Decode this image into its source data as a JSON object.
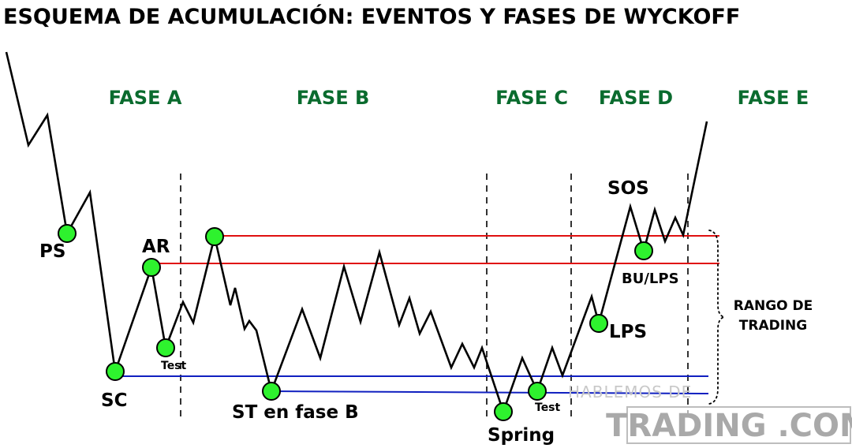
{
  "title": "ESQUEMA DE ACUMULACIÓN: EVENTOS Y FASES DE  WYCKOFF",
  "phases": [
    "FASE A",
    "FASE B",
    "FASE C",
    "FASE D",
    "FASE E"
  ],
  "events": {
    "ps": "PS",
    "sc": "SC",
    "ar": "AR",
    "test_a": "Test",
    "st_b": "ST en fase B",
    "spring": "Spring",
    "test_c": "Test",
    "sos": "SOS",
    "bu_lps": "BU/LPS",
    "lps": "LPS"
  },
  "range_label": [
    "RANGO DE",
    "TRADING"
  ],
  "watermark": {
    "line1": "HABLEMOS DE",
    "line2": "TRADING .COM"
  },
  "colors": {
    "phase_text": "#0a6b2e",
    "event_point": "#2ef22e",
    "resistance": "#e01010",
    "support": "#1020c0",
    "price": "#000000"
  }
}
